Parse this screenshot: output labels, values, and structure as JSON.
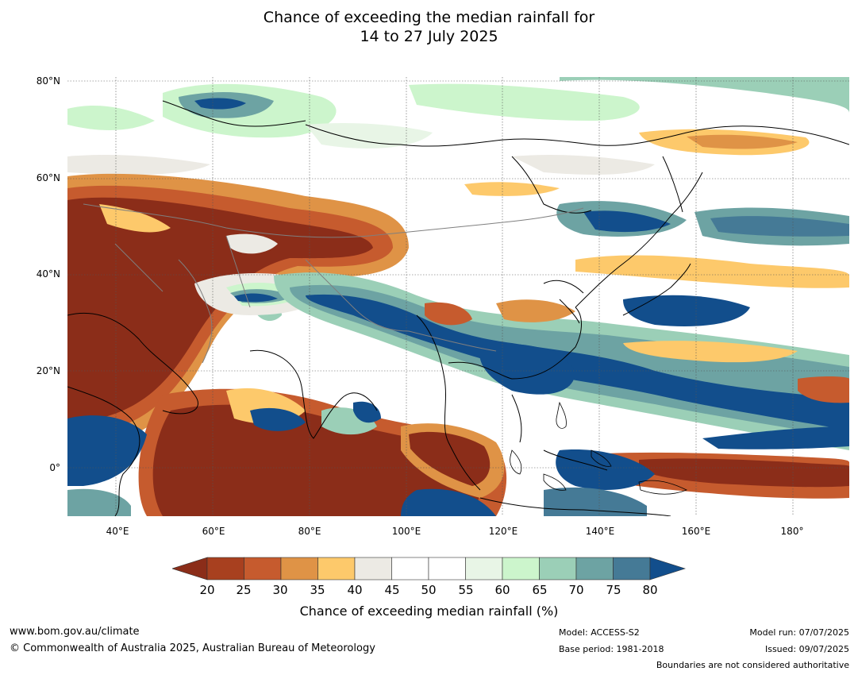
{
  "title": {
    "line1": "Chance of exceeding the median rainfall for",
    "line2": "14 to 27 July 2025"
  },
  "map": {
    "lat_labels": [
      "80°N",
      "60°N",
      "40°N",
      "20°N",
      "0°"
    ],
    "lon_labels": [
      "40°E",
      "60°E",
      "80°E",
      "100°E",
      "120°E",
      "140°E",
      "160°E",
      "180°"
    ],
    "lon_extent": [
      30,
      192
    ],
    "lat_extent": [
      -10,
      80
    ],
    "gridlines": true
  },
  "colorbar": {
    "ticks": [
      "20",
      "25",
      "30",
      "35",
      "40",
      "45",
      "50",
      "55",
      "60",
      "65",
      "70",
      "75",
      "80"
    ],
    "label": "Chance of exceeding median rainfall (%)",
    "under_color": "#8b2d19",
    "over_color": "#124e8c",
    "colors": [
      "#a8401f",
      "#c65b2e",
      "#df9346",
      "#fdc96b",
      "#eceae4",
      "#ffffff",
      "#ffffff",
      "#e8f5e6",
      "#ccf5cc",
      "#9bcfb7",
      "#6da3a3",
      "#457a96"
    ]
  },
  "footer": {
    "website": "www.bom.gov.au/climate",
    "copyright": "© Commonwealth of Australia 2025, Australian Bureau of Meteorology",
    "model": "Model: ACCESS-S2",
    "base_period": "Base period: 1981-2018",
    "model_run": "Model run: 07/07/2025",
    "issued": "Issued: 09/07/2025",
    "disclaimer": "Boundaries are not considered authoritative"
  }
}
